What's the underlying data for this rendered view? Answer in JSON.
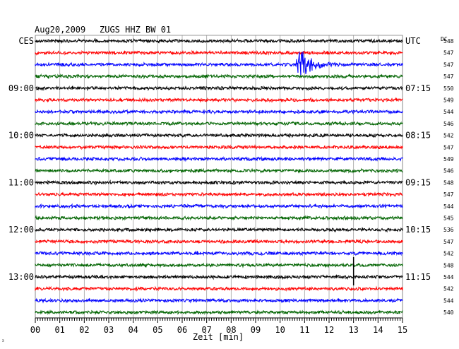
{
  "header": {
    "date": "Aug20,2009",
    "station": "ZUGS HHZ BW 01",
    "left_tz": "CES",
    "right_tz": "UTC",
    "dc_label": "DC"
  },
  "xaxis": {
    "label": "Zeit [min]",
    "ticks": [
      "00",
      "01",
      "02",
      "03",
      "04",
      "05",
      "06",
      "07",
      "08",
      "09",
      "10",
      "11",
      "12",
      "13",
      "14",
      "15"
    ]
  },
  "footer_mark": "²",
  "chart_data": {
    "type": "line",
    "title": "Aug20,2009   ZUGS HHZ BW 01",
    "xlabel": "Zeit [min]",
    "xlim": [
      0,
      15
    ],
    "row_minutes": 15,
    "trace_colors": [
      "#000000",
      "#ff0000",
      "#0000ff",
      "#006400"
    ],
    "left_labels": [
      {
        "row": 0,
        "text": "CES"
      },
      {
        "row": 4,
        "text": "09:00"
      },
      {
        "row": 8,
        "text": "10:00"
      },
      {
        "row": 12,
        "text": "11:00"
      },
      {
        "row": 16,
        "text": "12:00"
      },
      {
        "row": 20,
        "text": "13:00"
      }
    ],
    "right_labels": [
      {
        "row": 0,
        "text": "UTC"
      },
      {
        "row": 4,
        "text": "07:15"
      },
      {
        "row": 8,
        "text": "08:15"
      },
      {
        "row": 12,
        "text": "09:15"
      },
      {
        "row": 16,
        "text": "10:15"
      },
      {
        "row": 20,
        "text": "11:15"
      }
    ],
    "dc_values": [
      "548",
      "547",
      "547",
      "547",
      "550",
      "549",
      "544",
      "546",
      "542",
      "547",
      "549",
      "546",
      "548",
      "547",
      "544",
      "545",
      "536",
      "547",
      "542",
      "548",
      "544",
      "542",
      "544",
      "540"
    ],
    "events": [
      {
        "row": 2,
        "start_min": 10.65,
        "note": "seismic event with decaying coda"
      },
      {
        "row": 20,
        "start_min": 13.0,
        "note": "short spike"
      }
    ]
  }
}
